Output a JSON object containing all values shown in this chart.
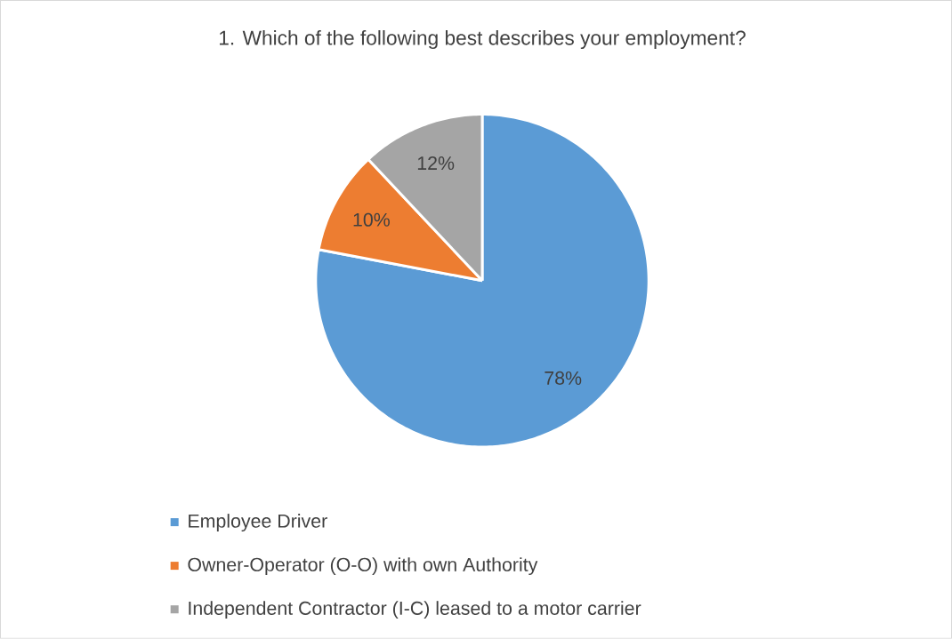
{
  "chart_data": {
    "type": "pie",
    "title": "1. Which of the following best describes your employment?",
    "categories": [
      "Employee Driver",
      "Owner-Operator (O-O) with own Authority",
      "Independent Contractor (I-C) leased to a motor carrier"
    ],
    "values": [
      78,
      10,
      12
    ],
    "colors": [
      "#5b9bd5",
      "#ed7d31",
      "#a5a5a5"
    ],
    "value_labels": [
      "78%",
      "10%",
      "12%"
    ],
    "legend": "bottom"
  }
}
